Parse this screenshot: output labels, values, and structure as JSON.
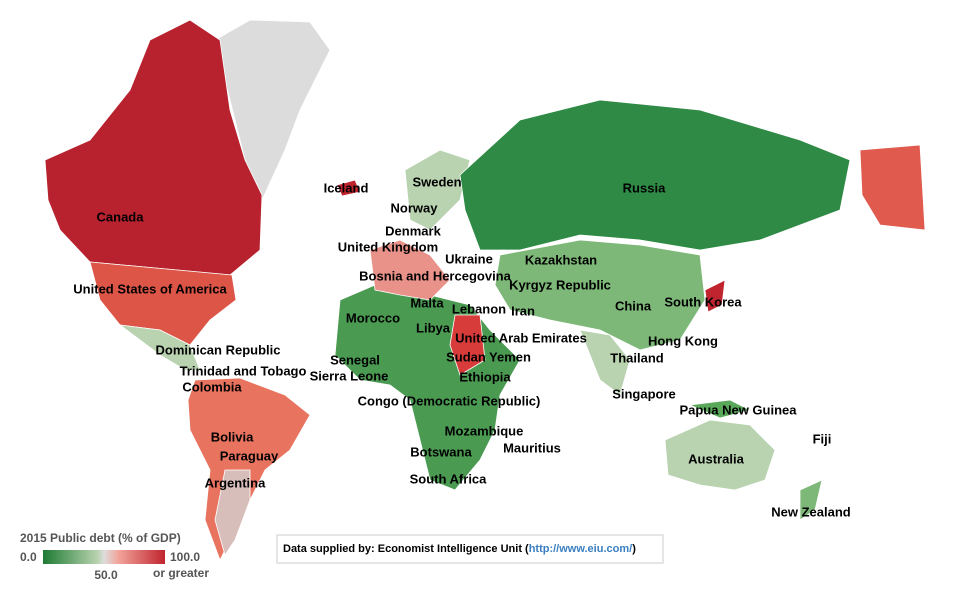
{
  "map": {
    "labels": [
      "Canada",
      "United States of America",
      "Iceland",
      "Sweden",
      "Norway",
      "Denmark",
      "United Kingdom",
      "Ukraine",
      "Bosnia and Hercegovina",
      "Kazakhstan",
      "Kyrgyz Republic",
      "Russia",
      "Malta",
      "Lebanon",
      "Iran",
      "China",
      "South Korea",
      "Morocco",
      "Libya",
      "United Arab Emirates",
      "Hong Kong",
      "Dominican Republic",
      "Senegal",
      "Sudan",
      "Yemen",
      "Thailand",
      "Sierra Leone",
      "Ethiopia",
      "Trinidad and Tobago",
      "Colombia",
      "Singapore",
      "Congo (Democratic Republic)",
      "Papua New Guinea",
      "Bolivia",
      "Mozambique",
      "Fiji",
      "Mauritius",
      "Paraguay",
      "Botswana",
      "Australia",
      "Argentina",
      "South Africa",
      "New Zealand"
    ],
    "legend": {
      "title": "2015 Public debt  (% of GDP)",
      "min_label": "0.0",
      "mid_label": "50.0",
      "max_label": "100.0",
      "max_note": "or greater"
    },
    "source": {
      "prefix": "Data supplied by: Economist Intelligence Unit (",
      "link": "http://www.eiu.com/",
      "suffix": ")"
    }
  }
}
